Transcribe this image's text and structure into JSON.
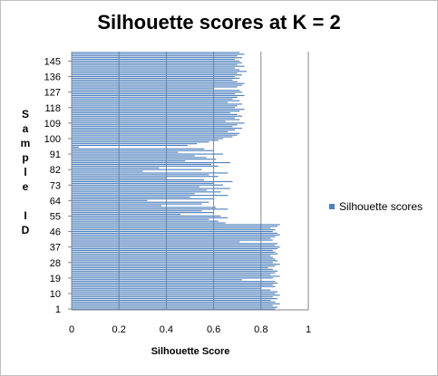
{
  "chart_data": {
    "type": "bar",
    "orientation": "horizontal",
    "title": "Silhouette scores at K = 2",
    "xlabel": "Silhouette Score",
    "ylabel": "Sample ID",
    "xlim": [
      0,
      1
    ],
    "xticks": [
      "0",
      "0.2",
      "0.4",
      "0.6",
      "0.8",
      "1"
    ],
    "yticks": [
      "1",
      "10",
      "19",
      "28",
      "37",
      "46",
      "55",
      "64",
      "73",
      "82",
      "91",
      "100",
      "109",
      "118",
      "127",
      "136",
      "145"
    ],
    "grid": "vertical",
    "legend": "right",
    "bar_color": "#4f81bd",
    "series": [
      {
        "name": "Silhouette scores",
        "x": [
          1,
          2,
          3,
          4,
          5,
          6,
          7,
          8,
          9,
          10,
          11,
          12,
          13,
          14,
          15,
          16,
          17,
          18,
          19,
          20,
          21,
          22,
          23,
          24,
          25,
          26,
          27,
          28,
          29,
          30,
          31,
          32,
          33,
          34,
          35,
          36,
          37,
          38,
          39,
          40,
          41,
          42,
          43,
          44,
          45,
          46,
          47,
          48,
          49,
          50,
          51,
          52,
          53,
          54,
          55,
          56,
          57,
          58,
          59,
          60,
          61,
          62,
          63,
          64,
          65,
          66,
          67,
          68,
          69,
          70,
          71,
          72,
          73,
          74,
          75,
          76,
          77,
          78,
          79,
          80,
          81,
          82,
          83,
          84,
          85,
          86,
          87,
          88,
          89,
          90,
          91,
          92,
          93,
          94,
          95,
          96,
          97,
          98,
          99,
          100,
          101,
          102,
          103,
          104,
          105,
          106,
          107,
          108,
          109,
          110,
          111,
          112,
          113,
          114,
          115,
          116,
          117,
          118,
          119,
          120,
          121,
          122,
          123,
          124,
          125,
          126,
          127,
          128,
          129,
          130,
          131,
          132,
          133,
          134,
          135,
          136,
          137,
          138,
          139,
          140,
          141,
          142,
          143,
          144,
          145,
          146,
          147,
          148,
          149,
          150
        ],
        "values": [
          0.86,
          0.87,
          0.85,
          0.88,
          0.86,
          0.84,
          0.87,
          0.85,
          0.88,
          0.86,
          0.87,
          0.84,
          0.8,
          0.86,
          0.85,
          0.87,
          0.86,
          0.72,
          0.85,
          0.88,
          0.84,
          0.86,
          0.87,
          0.85,
          0.83,
          0.86,
          0.88,
          0.85,
          0.87,
          0.86,
          0.85,
          0.84,
          0.87,
          0.86,
          0.85,
          0.87,
          0.88,
          0.86,
          0.87,
          0.71,
          0.85,
          0.84,
          0.86,
          0.88,
          0.87,
          0.85,
          0.86,
          0.84,
          0.87,
          0.88,
          0.65,
          0.62,
          0.58,
          0.66,
          0.63,
          0.46,
          0.6,
          0.55,
          0.66,
          0.61,
          0.38,
          0.55,
          0.58,
          0.32,
          0.6,
          0.5,
          0.66,
          0.52,
          0.63,
          0.57,
          0.67,
          0.54,
          0.64,
          0.6,
          0.68,
          0.56,
          0.4,
          0.62,
          0.58,
          0.66,
          0.3,
          0.55,
          0.37,
          0.62,
          0.59,
          0.67,
          0.48,
          0.61,
          0.57,
          0.52,
          0.64,
          0.45,
          0.6,
          0.56,
          0.03,
          0.49,
          0.53,
          0.58,
          0.62,
          0.64,
          0.68,
          0.7,
          0.71,
          0.66,
          0.69,
          0.72,
          0.68,
          0.7,
          0.73,
          0.65,
          0.71,
          0.69,
          0.72,
          0.7,
          0.67,
          0.71,
          0.73,
          0.69,
          0.7,
          0.72,
          0.66,
          0.71,
          0.68,
          0.7,
          0.73,
          0.69,
          0.72,
          0.71,
          0.6,
          0.7,
          0.72,
          0.73,
          0.7,
          0.68,
          0.71,
          0.69,
          0.72,
          0.7,
          0.74,
          0.71,
          0.69,
          0.73,
          0.7,
          0.72,
          0.71,
          0.69,
          0.72,
          0.7,
          0.73,
          0.71
        ]
      }
    ]
  }
}
